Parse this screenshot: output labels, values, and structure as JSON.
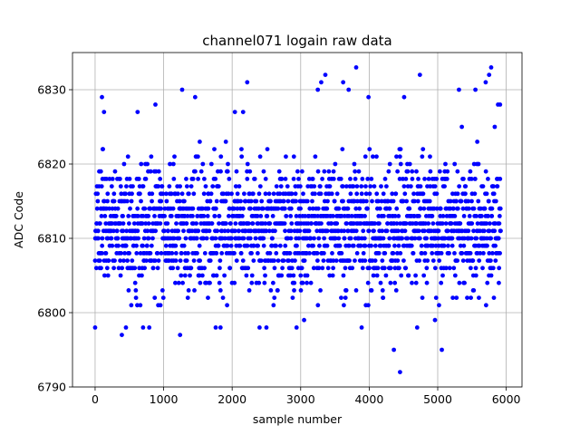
{
  "chart_data": {
    "type": "scatter",
    "title": "channel071 logain raw data",
    "xlabel": "sample number",
    "ylabel": "ADC Code",
    "xlim": [
      -330,
      6230
    ],
    "ylim": [
      6790,
      6835
    ],
    "xticks": [
      0,
      1000,
      2000,
      3000,
      4000,
      5000,
      6000
    ],
    "yticks": [
      6790,
      6800,
      6810,
      6820,
      6830
    ],
    "grid": true,
    "marker_color": "#0000ff",
    "series": [
      {
        "sample_count": 5920,
        "x_range": [
          0,
          5920
        ],
        "typical_range": [
          6801,
          6822
        ],
        "mean": 6811.5,
        "values_note": "dense blue dot band; outliers listed below",
        "outliers": [
          {
            "x": 0,
            "y": 6798
          },
          {
            "x": 100,
            "y": 6829
          },
          {
            "x": 130,
            "y": 6827
          },
          {
            "x": 390,
            "y": 6797
          },
          {
            "x": 450,
            "y": 6798
          },
          {
            "x": 620,
            "y": 6827
          },
          {
            "x": 700,
            "y": 6798
          },
          {
            "x": 790,
            "y": 6798
          },
          {
            "x": 880,
            "y": 6828
          },
          {
            "x": 1240,
            "y": 6797
          },
          {
            "x": 1270,
            "y": 6830
          },
          {
            "x": 1460,
            "y": 6829
          },
          {
            "x": 1760,
            "y": 6798
          },
          {
            "x": 1830,
            "y": 6798
          },
          {
            "x": 2040,
            "y": 6827
          },
          {
            "x": 2160,
            "y": 6827
          },
          {
            "x": 2220,
            "y": 6831
          },
          {
            "x": 2400,
            "y": 6798
          },
          {
            "x": 2500,
            "y": 6798
          },
          {
            "x": 2940,
            "y": 6798
          },
          {
            "x": 3050,
            "y": 6799
          },
          {
            "x": 3250,
            "y": 6830
          },
          {
            "x": 3300,
            "y": 6831
          },
          {
            "x": 3360,
            "y": 6832
          },
          {
            "x": 3620,
            "y": 6831
          },
          {
            "x": 3700,
            "y": 6830
          },
          {
            "x": 3810,
            "y": 6833
          },
          {
            "x": 3890,
            "y": 6798
          },
          {
            "x": 3990,
            "y": 6829
          },
          {
            "x": 4360,
            "y": 6795
          },
          {
            "x": 4450,
            "y": 6792
          },
          {
            "x": 4510,
            "y": 6829
          },
          {
            "x": 4700,
            "y": 6798
          },
          {
            "x": 4740,
            "y": 6832
          },
          {
            "x": 4960,
            "y": 6799
          },
          {
            "x": 5060,
            "y": 6795
          },
          {
            "x": 5310,
            "y": 6830
          },
          {
            "x": 5550,
            "y": 6830
          },
          {
            "x": 5700,
            "y": 6831
          },
          {
            "x": 5750,
            "y": 6832
          },
          {
            "x": 5780,
            "y": 6833
          },
          {
            "x": 5820,
            "y": 6802
          },
          {
            "x": 5880,
            "y": 6828
          },
          {
            "x": 5910,
            "y": 6828
          }
        ]
      }
    ]
  }
}
